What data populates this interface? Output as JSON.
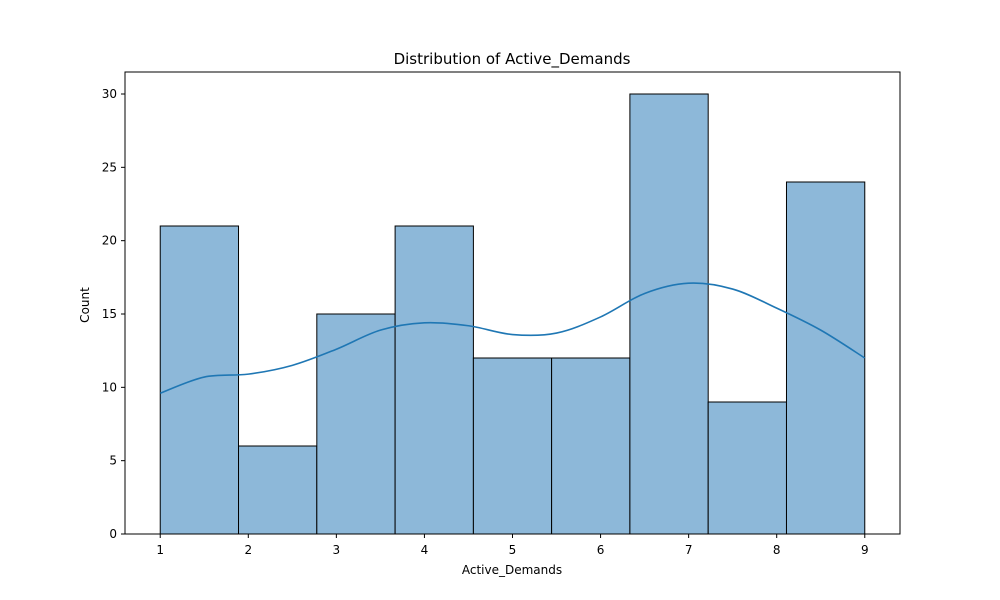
{
  "chart_data": {
    "type": "bar",
    "title": "Distribution of Active_Demands",
    "xlabel": "Active_Demands",
    "ylabel": "Count",
    "xlim": [
      0.6,
      9.4
    ],
    "ylim": [
      0,
      31.5
    ],
    "xticks": [
      1,
      2,
      3,
      4,
      5,
      6,
      7,
      8,
      9
    ],
    "yticks": [
      0,
      5,
      10,
      15,
      20,
      25,
      30
    ],
    "bins": [
      {
        "start": 1.0,
        "end": 1.889,
        "count": 21
      },
      {
        "start": 1.889,
        "end": 2.778,
        "count": 6
      },
      {
        "start": 2.778,
        "end": 3.667,
        "count": 15
      },
      {
        "start": 3.667,
        "end": 4.556,
        "count": 21
      },
      {
        "start": 4.556,
        "end": 5.444,
        "count": 12
      },
      {
        "start": 5.444,
        "end": 6.333,
        "count": 12
      },
      {
        "start": 6.333,
        "end": 7.222,
        "count": 30
      },
      {
        "start": 7.222,
        "end": 8.111,
        "count": 9
      },
      {
        "start": 8.111,
        "end": 9.0,
        "count": 24
      }
    ],
    "kde": {
      "x": [
        1.0,
        1.5,
        2.0,
        2.5,
        3.0,
        3.5,
        4.0,
        4.5,
        5.0,
        5.5,
        6.0,
        6.5,
        7.0,
        7.5,
        8.0,
        8.5,
        9.0
      ],
      "y": [
        9.6,
        10.7,
        10.9,
        11.5,
        12.6,
        13.9,
        14.4,
        14.2,
        13.6,
        13.7,
        14.8,
        16.4,
        17.1,
        16.7,
        15.4,
        13.9,
        12.0
      ]
    },
    "bar_color": "#8db8d9",
    "bar_edge_color": "#000000",
    "kde_color": "#1f77b4",
    "grid": false,
    "legend": "none"
  }
}
